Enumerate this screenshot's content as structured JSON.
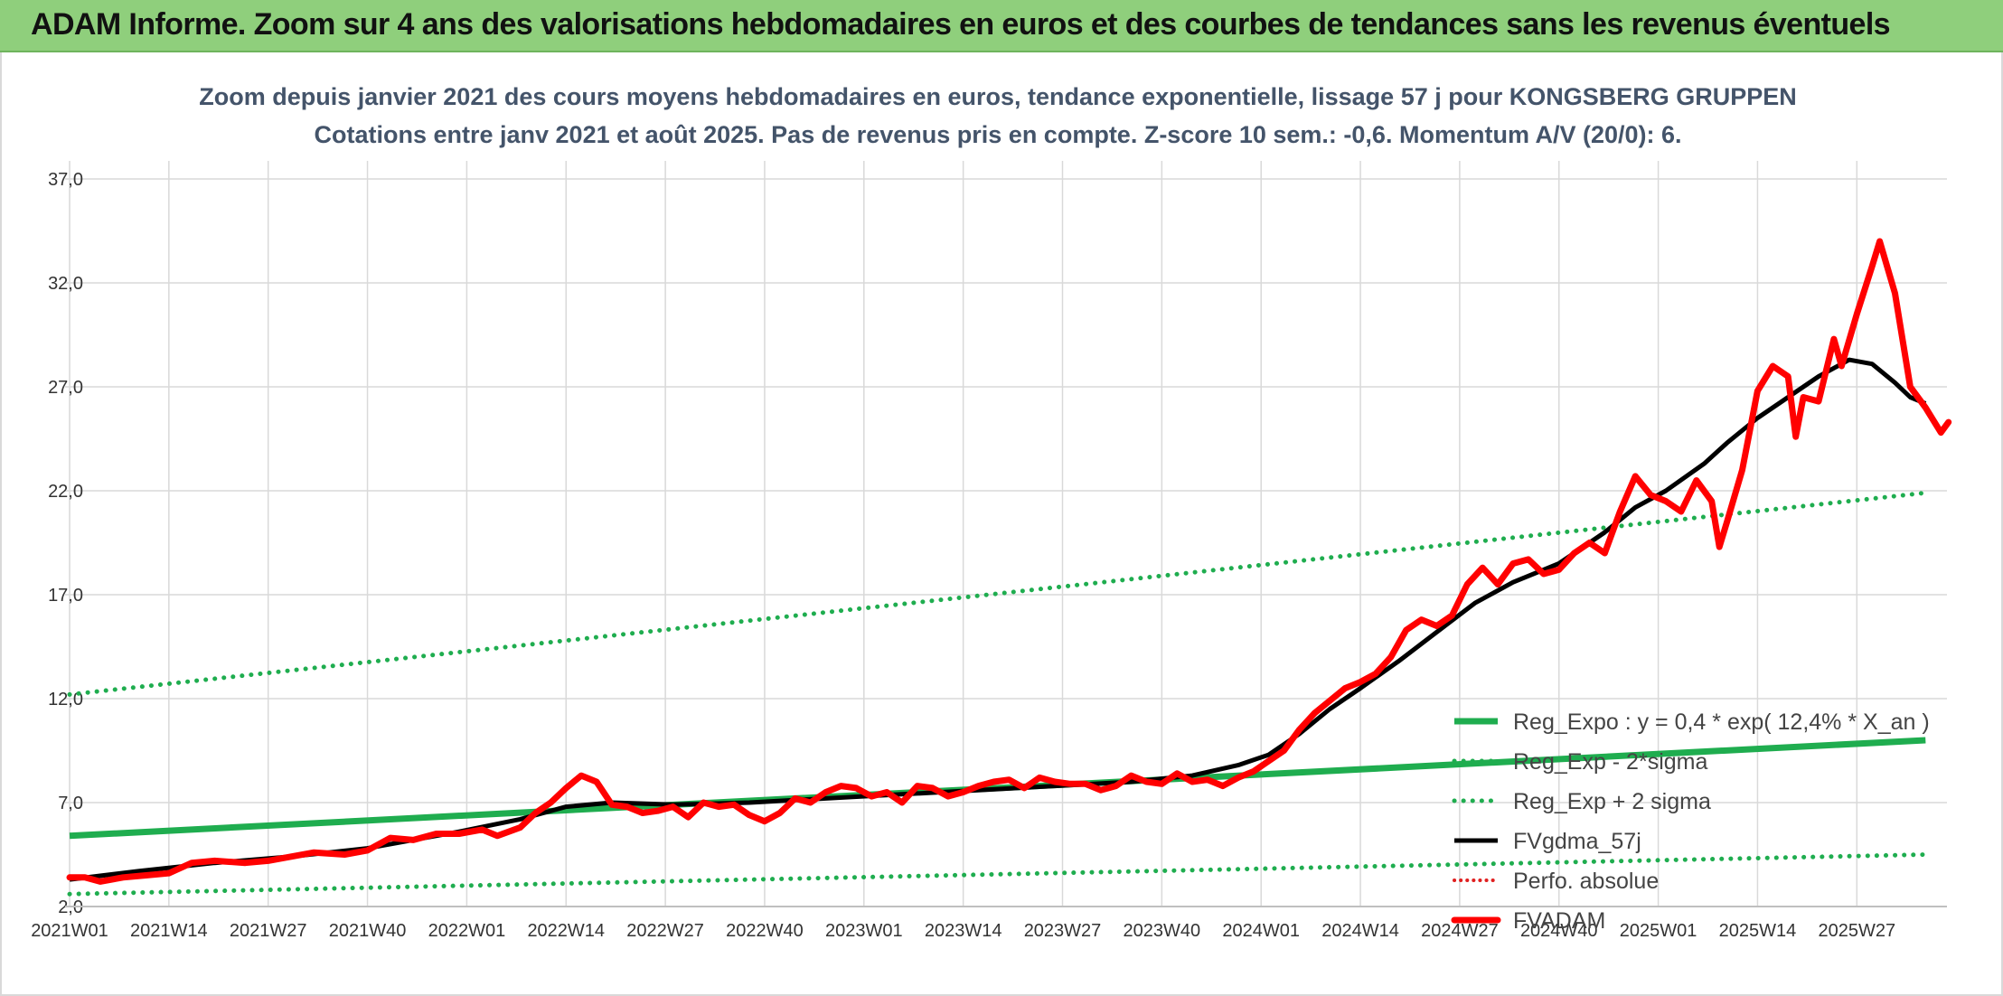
{
  "banner": {
    "title": "ADAM Informe. Zoom sur 4 ans des valorisations hebdomadaires en euros et des courbes de tendances sans les revenus éventuels"
  },
  "chart_data": {
    "type": "line",
    "title": "Zoom depuis janvier 2021 des cours moyens hebdomadaires en euros, tendance exponentielle, lissage 57 j pour KONGSBERG GRUPPEN",
    "subtitle": "Cotations entre janv 2021 et août 2025. Pas de revenus pris en compte. Z-score 10 sem.: -0,6. Momentum A/V (20/0): 6.",
    "xlabel": "",
    "ylabel": "",
    "ylim": [
      2.0,
      37.0
    ],
    "yticks": [
      "2,0",
      "7,0",
      "12,0",
      "17,0",
      "22,0",
      "27,0",
      "32,0",
      "37,0"
    ],
    "xlim": [
      1,
      244
    ],
    "xticks": [
      {
        "i": 1,
        "label": "2021W01"
      },
      {
        "i": 14,
        "label": "2021W14"
      },
      {
        "i": 27,
        "label": "2021W27"
      },
      {
        "i": 40,
        "label": "2021W40"
      },
      {
        "i": 53,
        "label": "2022W01"
      },
      {
        "i": 66,
        "label": "2022W14"
      },
      {
        "i": 79,
        "label": "2022W27"
      },
      {
        "i": 92,
        "label": "2022W40"
      },
      {
        "i": 105,
        "label": "2023W01"
      },
      {
        "i": 118,
        "label": "2023W14"
      },
      {
        "i": 131,
        "label": "2023W27"
      },
      {
        "i": 144,
        "label": "2023W40"
      },
      {
        "i": 157,
        "label": "2024W01"
      },
      {
        "i": 170,
        "label": "2024W14"
      },
      {
        "i": 183,
        "label": "2024W27"
      },
      {
        "i": 196,
        "label": "2024W40"
      },
      {
        "i": 209,
        "label": "2025W01"
      },
      {
        "i": 222,
        "label": "2025W14"
      },
      {
        "i": 235,
        "label": "2025W27"
      }
    ],
    "grid": true,
    "legend_position": "right",
    "colors": {
      "green": "#1fad4f",
      "black": "#000000",
      "red": "#ff0000",
      "dotred": "#e02020"
    },
    "series": [
      {
        "name": "Reg_Expo : y = 0,4 * exp( 12,4% *  X_an )",
        "style": "solid-green",
        "points": [
          [
            1,
            5.4
          ],
          [
            244,
            10.0
          ]
        ]
      },
      {
        "name": "Reg_Exp - 2*sigma",
        "style": "dotted-green",
        "points": [
          [
            1,
            2.6
          ],
          [
            244,
            4.5
          ]
        ]
      },
      {
        "name": "Reg_Exp + 2 sigma",
        "style": "dotted-green",
        "points": [
          [
            1,
            12.2
          ],
          [
            244,
            21.9
          ]
        ]
      },
      {
        "name": "FVgdma_57j",
        "style": "solid-black",
        "points": [
          [
            1,
            3.3
          ],
          [
            10,
            3.7
          ],
          [
            20,
            4.1
          ],
          [
            30,
            4.4
          ],
          [
            40,
            4.8
          ],
          [
            52,
            5.6
          ],
          [
            60,
            6.2
          ],
          [
            66,
            6.8
          ],
          [
            72,
            7.0
          ],
          [
            80,
            6.9
          ],
          [
            90,
            7.0
          ],
          [
            100,
            7.2
          ],
          [
            110,
            7.4
          ],
          [
            120,
            7.6
          ],
          [
            130,
            7.8
          ],
          [
            140,
            8.0
          ],
          [
            148,
            8.3
          ],
          [
            154,
            8.8
          ],
          [
            158,
            9.3
          ],
          [
            162,
            10.3
          ],
          [
            166,
            11.5
          ],
          [
            170,
            12.5
          ],
          [
            175,
            13.8
          ],
          [
            180,
            15.2
          ],
          [
            185,
            16.6
          ],
          [
            190,
            17.6
          ],
          [
            196,
            18.5
          ],
          [
            202,
            20.0
          ],
          [
            206,
            21.2
          ],
          [
            210,
            22.0
          ],
          [
            215,
            23.3
          ],
          [
            218,
            24.3
          ],
          [
            222,
            25.5
          ],
          [
            226,
            26.5
          ],
          [
            230,
            27.5
          ],
          [
            234,
            28.3
          ],
          [
            237,
            28.1
          ],
          [
            240,
            27.2
          ],
          [
            242,
            26.5
          ],
          [
            244,
            26.2
          ]
        ]
      },
      {
        "name": "Perfo. absolue",
        "style": "dotted-red",
        "points": []
      },
      {
        "name": "FVADAM",
        "style": "solid-red",
        "points": [
          [
            1,
            3.4
          ],
          [
            3,
            3.4
          ],
          [
            5,
            3.2
          ],
          [
            8,
            3.4
          ],
          [
            11,
            3.5
          ],
          [
            14,
            3.6
          ],
          [
            17,
            4.1
          ],
          [
            20,
            4.2
          ],
          [
            24,
            4.1
          ],
          [
            27,
            4.2
          ],
          [
            30,
            4.4
          ],
          [
            33,
            4.6
          ],
          [
            37,
            4.5
          ],
          [
            40,
            4.7
          ],
          [
            43,
            5.3
          ],
          [
            46,
            5.2
          ],
          [
            49,
            5.5
          ],
          [
            52,
            5.5
          ],
          [
            55,
            5.7
          ],
          [
            57,
            5.4
          ],
          [
            60,
            5.8
          ],
          [
            62,
            6.5
          ],
          [
            64,
            7.0
          ],
          [
            66,
            7.7
          ],
          [
            68,
            8.3
          ],
          [
            70,
            8.0
          ],
          [
            72,
            6.9
          ],
          [
            74,
            6.8
          ],
          [
            76,
            6.5
          ],
          [
            78,
            6.6
          ],
          [
            80,
            6.8
          ],
          [
            82,
            6.3
          ],
          [
            84,
            7.0
          ],
          [
            86,
            6.8
          ],
          [
            88,
            6.9
          ],
          [
            90,
            6.4
          ],
          [
            92,
            6.1
          ],
          [
            94,
            6.5
          ],
          [
            96,
            7.2
          ],
          [
            98,
            7.0
          ],
          [
            100,
            7.5
          ],
          [
            102,
            7.8
          ],
          [
            104,
            7.7
          ],
          [
            106,
            7.3
          ],
          [
            108,
            7.5
          ],
          [
            110,
            7.0
          ],
          [
            112,
            7.8
          ],
          [
            114,
            7.7
          ],
          [
            116,
            7.3
          ],
          [
            118,
            7.5
          ],
          [
            120,
            7.8
          ],
          [
            122,
            8.0
          ],
          [
            124,
            8.1
          ],
          [
            126,
            7.7
          ],
          [
            128,
            8.2
          ],
          [
            130,
            8.0
          ],
          [
            132,
            7.9
          ],
          [
            134,
            7.9
          ],
          [
            136,
            7.6
          ],
          [
            138,
            7.8
          ],
          [
            140,
            8.3
          ],
          [
            142,
            8.0
          ],
          [
            144,
            7.9
          ],
          [
            146,
            8.4
          ],
          [
            148,
            8.0
          ],
          [
            150,
            8.1
          ],
          [
            152,
            7.8
          ],
          [
            154,
            8.2
          ],
          [
            156,
            8.5
          ],
          [
            158,
            9.0
          ],
          [
            160,
            9.5
          ],
          [
            162,
            10.5
          ],
          [
            164,
            11.3
          ],
          [
            166,
            11.9
          ],
          [
            168,
            12.5
          ],
          [
            170,
            12.8
          ],
          [
            172,
            13.2
          ],
          [
            174,
            14.0
          ],
          [
            176,
            15.3
          ],
          [
            178,
            15.8
          ],
          [
            180,
            15.5
          ],
          [
            182,
            16.0
          ],
          [
            184,
            17.5
          ],
          [
            186,
            18.3
          ],
          [
            188,
            17.5
          ],
          [
            190,
            18.5
          ],
          [
            192,
            18.7
          ],
          [
            194,
            18.0
          ],
          [
            196,
            18.2
          ],
          [
            198,
            19.0
          ],
          [
            200,
            19.5
          ],
          [
            202,
            19.0
          ],
          [
            204,
            21.0
          ],
          [
            206,
            22.7
          ],
          [
            208,
            21.8
          ],
          [
            210,
            21.5
          ],
          [
            212,
            21.0
          ],
          [
            214,
            22.5
          ],
          [
            216,
            21.5
          ],
          [
            217,
            19.3
          ],
          [
            218,
            20.5
          ],
          [
            220,
            23.0
          ],
          [
            222,
            26.8
          ],
          [
            224,
            28.0
          ],
          [
            226,
            27.5
          ],
          [
            227,
            24.6
          ],
          [
            228,
            26.5
          ],
          [
            230,
            26.3
          ],
          [
            232,
            29.3
          ],
          [
            233,
            28.0
          ],
          [
            235,
            30.5
          ],
          [
            237,
            32.8
          ],
          [
            238,
            34.0
          ],
          [
            240,
            31.5
          ],
          [
            242,
            27.0
          ],
          [
            244,
            26.0
          ],
          [
            246,
            24.8
          ],
          [
            247,
            25.3
          ]
        ]
      }
    ]
  }
}
